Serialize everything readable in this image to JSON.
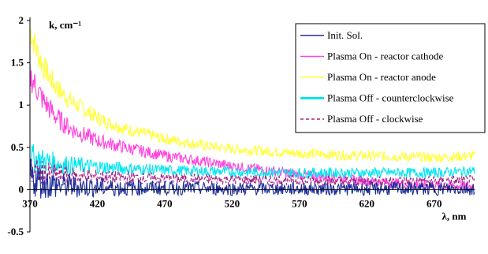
{
  "chart_data": {
    "type": "line",
    "title": "",
    "xlabel": "λ, nm",
    "ylabel": "k, cm⁻¹",
    "xlim": [
      370,
      700
    ],
    "ylim": [
      -0.5,
      2
    ],
    "x_ticks": [
      370,
      420,
      470,
      520,
      570,
      620,
      670
    ],
    "y_ticks": [
      -0.5,
      0,
      0.5,
      1,
      1.5,
      2
    ],
    "x_tick_labels": [
      "370",
      "420",
      "470",
      "520",
      "570",
      "620",
      "670"
    ],
    "y_tick_labels": [
      "-0.5",
      "0",
      "0.5",
      "1",
      "1.5",
      "2"
    ],
    "grid": false,
    "legend_position": "top-right",
    "series": [
      {
        "name": "Init. Sol.",
        "color": "#1f2f9a",
        "dash": "solid",
        "x": [
          370,
          380,
          390,
          400,
          420,
          440,
          470,
          520,
          570,
          620,
          670,
          700
        ],
        "y": [
          0.15,
          0.08,
          0.05,
          0.04,
          0.03,
          0.02,
          0.02,
          0.01,
          0.01,
          0.01,
          0.01,
          0.01
        ]
      },
      {
        "name": "Plasma On - reactor cathode",
        "color": "#ff44dd",
        "dash": "solid",
        "x": [
          370,
          375,
          380,
          390,
          400,
          420,
          440,
          470,
          500,
          520,
          550,
          570,
          600,
          620,
          650,
          670,
          700
        ],
        "y": [
          1.35,
          1.2,
          1.05,
          0.85,
          0.72,
          0.58,
          0.5,
          0.4,
          0.33,
          0.28,
          0.22,
          0.18,
          0.13,
          0.1,
          0.07,
          0.05,
          0.04
        ]
      },
      {
        "name": "Plasma On - reactor anode",
        "color": "#ffff33",
        "dash": "solid",
        "x": [
          370,
          375,
          380,
          390,
          400,
          420,
          440,
          470,
          500,
          520,
          550,
          570,
          600,
          620,
          650,
          670,
          700
        ],
        "y": [
          1.9,
          1.65,
          1.45,
          1.2,
          1.05,
          0.85,
          0.72,
          0.6,
          0.52,
          0.48,
          0.45,
          0.43,
          0.41,
          0.4,
          0.39,
          0.38,
          0.4
        ]
      },
      {
        "name": "Plasma Off - counterclockwise",
        "color": "#00e5f0",
        "dash": "solid",
        "x": [
          370,
          380,
          390,
          400,
          420,
          440,
          470,
          520,
          570,
          620,
          670,
          700
        ],
        "y": [
          0.38,
          0.34,
          0.31,
          0.29,
          0.27,
          0.25,
          0.23,
          0.21,
          0.2,
          0.2,
          0.2,
          0.22
        ]
      },
      {
        "name": "Plasma Off - clockwise",
        "color": "#aa2288",
        "dash": "dashed",
        "x": [
          370,
          380,
          390,
          400,
          420,
          440,
          470,
          520,
          570,
          620,
          670,
          700
        ],
        "y": [
          0.22,
          0.19,
          0.17,
          0.16,
          0.15,
          0.14,
          0.13,
          0.12,
          0.11,
          0.1,
          0.1,
          0.11
        ]
      }
    ]
  }
}
